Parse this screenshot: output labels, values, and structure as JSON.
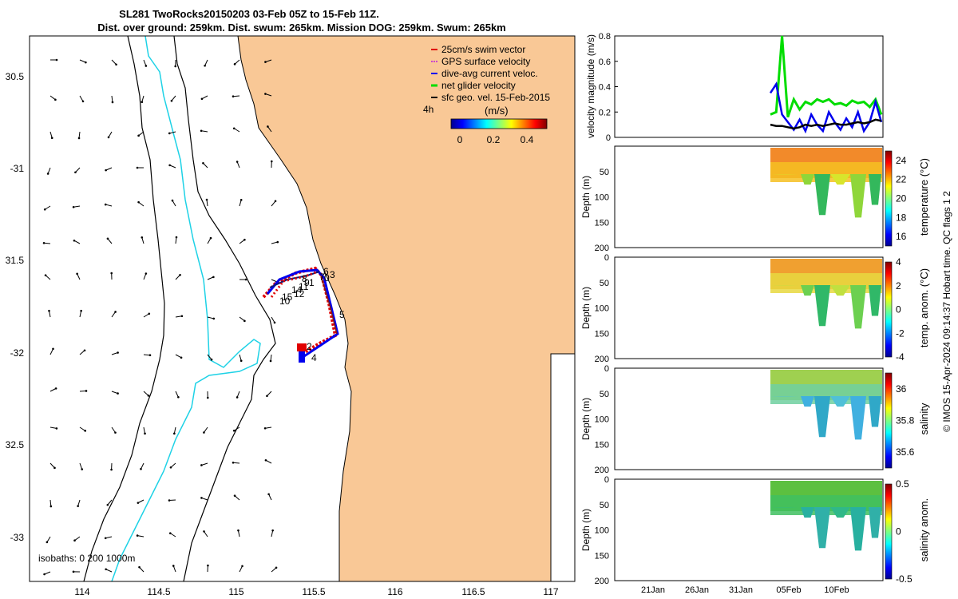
{
  "title": {
    "line1": "SL281 TwoRocks20150203 03-Feb 05Z to 15-Feb 11Z.",
    "line2": "Dist. over ground: 259km. Dist. swum: 265km. Mission DOG: 259km. Swum: 265km"
  },
  "credit": "© IMOS 15-Apr-2024 09:14:37 Hobart time. QC flags 1  2",
  "map": {
    "lon_ticks": [
      "114",
      "114.5",
      "115",
      "115.5",
      "116",
      "116.5",
      "117"
    ],
    "lat_ticks": [
      "30.5",
      "-31",
      "31.5",
      "-32",
      "32.5",
      "-33"
    ],
    "legend": [
      {
        "label": "25cm/s swim vector",
        "color": "#e00000"
      },
      {
        "label": "GPS surface velocity",
        "color": "#cc44cc"
      },
      {
        "label": "dive-avg current veloc.",
        "color": "#0000ee"
      },
      {
        "label": "net glider velocity",
        "color": "#00dd00"
      },
      {
        "label": "sfc geo. vel. 15-Feb-2015",
        "color": "#000000"
      }
    ],
    "legend_extra": "4h",
    "colorbar_label": "(m/s)",
    "colorbar_ticks": [
      "0",
      "0.2",
      "0.4"
    ],
    "isobaths_label": "isobaths: 0   200   1000m",
    "track_labels": [
      "6",
      "3",
      "7",
      "0",
      "9",
      "1",
      "14",
      "12",
      "15",
      "10",
      "8",
      "11",
      "5",
      "2",
      "4"
    ],
    "land_color": "#f9c896",
    "isobath_200_color": "#1ed2e6"
  },
  "chart_data": [
    {
      "type": "line",
      "title": "",
      "ylabel": "velocity magnitude (m/s)",
      "ylim": [
        0,
        0.8
      ],
      "yticks": [
        "0",
        "0.2",
        "0.4",
        "0.6",
        "0.8"
      ],
      "xlabel": "",
      "xticks": [
        "21Jan",
        "26Jan",
        "31Jan",
        "05Feb",
        "10Feb"
      ],
      "x_start": "03-Feb",
      "x_end": "15-Feb",
      "series": [
        {
          "color": "#00dd00",
          "values": [
            0.18,
            0.2,
            0.8,
            0.16,
            0.3,
            0.22,
            0.28,
            0.26,
            0.3,
            0.28,
            0.3,
            0.26,
            0.27,
            0.25,
            0.29,
            0.27,
            0.28,
            0.24,
            0.3,
            0.18
          ]
        },
        {
          "color": "#0000ee",
          "values": [
            0.35,
            0.42,
            0.18,
            0.12,
            0.06,
            0.14,
            0.05,
            0.18,
            0.1,
            0.05,
            0.2,
            0.12,
            0.06,
            0.15,
            0.08,
            0.2,
            0.05,
            0.12,
            0.28,
            0.12
          ]
        },
        {
          "color": "#000000",
          "values": [
            0.1,
            0.09,
            0.09,
            0.08,
            0.07,
            0.08,
            0.1,
            0.09,
            0.1,
            0.09,
            0.1,
            0.11,
            0.1,
            0.1,
            0.11,
            0.12,
            0.11,
            0.12,
            0.14,
            0.13
          ]
        }
      ]
    },
    {
      "type": "heatmap",
      "ylabel": "Depth (m)",
      "yticks": [
        "50",
        "100",
        "150",
        "200"
      ],
      "colorbar_label": "temperature (°C)",
      "colorbar_ticks": [
        "24",
        "22",
        "20",
        "18",
        "16"
      ],
      "clim": [
        15,
        25
      ]
    },
    {
      "type": "heatmap",
      "ylabel": "Depth (m)",
      "yticks": [
        "0",
        "50",
        "100",
        "150",
        "200"
      ],
      "colorbar_label": "temp. anom. (°C)",
      "colorbar_ticks": [
        "4",
        "2",
        "0",
        "-2",
        "-4"
      ],
      "clim": [
        -4,
        4
      ]
    },
    {
      "type": "heatmap",
      "ylabel": "Depth (m)",
      "yticks": [
        "0",
        "50",
        "100",
        "150",
        "200"
      ],
      "colorbar_label": "salinity",
      "colorbar_ticks": [
        "36",
        "35.8",
        "35.6"
      ],
      "clim": [
        35.5,
        36.1
      ]
    },
    {
      "type": "heatmap",
      "ylabel": "Depth (m)",
      "yticks": [
        "0",
        "50",
        "100",
        "150",
        "200"
      ],
      "colorbar_label": "salinity anom.",
      "colorbar_ticks": [
        "0.5",
        "0",
        "-0.5"
      ],
      "clim": [
        -0.5,
        0.5
      ]
    }
  ]
}
